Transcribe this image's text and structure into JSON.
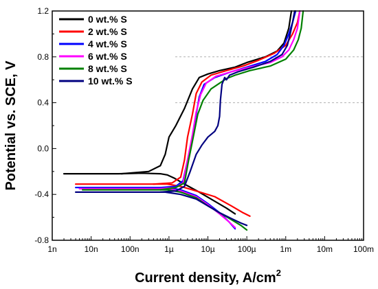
{
  "chart_data": {
    "type": "line",
    "xlabel": "Current density, A/cm",
    "xlabel_sup": "2",
    "ylabel": "Potential vs. SCE, V",
    "x_scale": "log",
    "xlim": [
      1e-09,
      0.1
    ],
    "ylim": [
      -0.8,
      1.2
    ],
    "x_ticks": [
      1e-09,
      1e-08,
      1e-07,
      1e-06,
      1e-05,
      0.0001,
      0.001,
      0.01,
      0.1
    ],
    "x_tick_labels": [
      "1n",
      "10n",
      "100n",
      "1µ",
      "10µ",
      "100µ",
      "1m",
      "10m",
      "100m"
    ],
    "y_ticks": [
      -0.8,
      -0.4,
      0.0,
      0.4,
      0.8,
      1.2
    ],
    "y_tick_labels": [
      "-0.8",
      "-0.4",
      "0.0",
      "0.4",
      "0.8",
      "1.2"
    ],
    "grid": "horizontal dashed at 0.4 and 0.8 (right of legend)",
    "legend_position": "top-left",
    "series": [
      {
        "name": "0 wt.% S",
        "color": "#000000",
        "cathodic": [
          [
            2e-09,
            -0.22
          ],
          [
            1e-08,
            -0.22
          ],
          [
            5e-08,
            -0.22
          ],
          [
            2e-07,
            -0.215
          ],
          [
            6e-07,
            -0.22
          ],
          [
            9e-07,
            -0.23
          ],
          [
            1.4e-06,
            -0.26
          ],
          [
            2.5e-06,
            -0.31
          ],
          [
            6e-06,
            -0.38
          ],
          [
            1.5e-05,
            -0.46
          ],
          [
            3e-05,
            -0.52
          ],
          [
            5e-05,
            -0.57
          ]
        ],
        "anodic": [
          [
            6e-08,
            -0.22
          ],
          [
            3e-07,
            -0.2
          ],
          [
            6e-07,
            -0.15
          ],
          [
            8e-07,
            -0.05
          ],
          [
            1e-06,
            0.1
          ],
          [
            1.5e-06,
            0.2
          ],
          [
            2.5e-06,
            0.35
          ],
          [
            4e-06,
            0.52
          ],
          [
            6e-06,
            0.62
          ],
          [
            1e-05,
            0.65
          ],
          [
            2e-05,
            0.68
          ],
          [
            5e-05,
            0.71
          ],
          [
            0.0001,
            0.75
          ],
          [
            0.0003,
            0.8
          ],
          [
            0.0006,
            0.85
          ],
          [
            0.0009,
            0.92
          ],
          [
            0.0012,
            1.05
          ],
          [
            0.0014,
            1.2
          ]
        ]
      },
      {
        "name": "2 wt.% S",
        "color": "#ff0000",
        "cathodic": [
          [
            4e-09,
            -0.31
          ],
          [
            3e-08,
            -0.31
          ],
          [
            2e-07,
            -0.31
          ],
          [
            9e-07,
            -0.31
          ],
          [
            2e-06,
            -0.33
          ],
          [
            5e-06,
            -0.37
          ],
          [
            1.5e-05,
            -0.42
          ],
          [
            4e-05,
            -0.5
          ],
          [
            8e-05,
            -0.56
          ],
          [
            0.00012,
            -0.59
          ]
        ],
        "anodic": [
          [
            4e-07,
            -0.31
          ],
          [
            1.2e-06,
            -0.3
          ],
          [
            2e-06,
            -0.25
          ],
          [
            2.5e-06,
            -0.1
          ],
          [
            3e-06,
            0.1
          ],
          [
            4e-06,
            0.3
          ],
          [
            5e-06,
            0.48
          ],
          [
            7e-06,
            0.58
          ],
          [
            1.2e-05,
            0.64
          ],
          [
            3e-05,
            0.68
          ],
          [
            8e-05,
            0.72
          ],
          [
            0.0002,
            0.77
          ],
          [
            0.0005,
            0.83
          ],
          [
            0.001,
            0.9
          ],
          [
            0.0015,
            1.0
          ],
          [
            0.002,
            1.1
          ],
          [
            0.0023,
            1.2
          ]
        ]
      },
      {
        "name": "4 wt.% S",
        "color": "#0000ff",
        "cathodic": [
          [
            4e-09,
            -0.34
          ],
          [
            3e-08,
            -0.34
          ],
          [
            2e-07,
            -0.34
          ],
          [
            9e-07,
            -0.34
          ],
          [
            2e-06,
            -0.36
          ],
          [
            5e-06,
            -0.41
          ],
          [
            1e-05,
            -0.48
          ],
          [
            2e-05,
            -0.56
          ],
          [
            3.5e-05,
            -0.64
          ],
          [
            5e-05,
            -0.7
          ]
        ],
        "anodic": [
          [
            6e-07,
            -0.34
          ],
          [
            1.5e-06,
            -0.33
          ],
          [
            2.3e-06,
            -0.28
          ],
          [
            3e-06,
            -0.1
          ],
          [
            4e-06,
            0.1
          ],
          [
            5e-06,
            0.3
          ],
          [
            6e-06,
            0.45
          ],
          [
            8e-06,
            0.56
          ],
          [
            1.5e-05,
            0.62
          ],
          [
            4e-05,
            0.67
          ],
          [
            0.0001,
            0.71
          ],
          [
            0.0003,
            0.76
          ],
          [
            0.0006,
            0.82
          ],
          [
            0.0009,
            0.9
          ],
          [
            0.0012,
            1.0
          ],
          [
            0.0015,
            1.1
          ],
          [
            0.0018,
            1.2
          ]
        ]
      },
      {
        "name": "6 wt.% S",
        "color": "#ff00ff",
        "cathodic": [
          [
            5e-09,
            -0.35
          ],
          [
            3e-08,
            -0.35
          ],
          [
            2e-07,
            -0.35
          ],
          [
            9e-07,
            -0.35
          ],
          [
            2e-06,
            -0.37
          ],
          [
            5e-06,
            -0.42
          ],
          [
            1e-05,
            -0.49
          ],
          [
            2e-05,
            -0.57
          ],
          [
            3.5e-05,
            -0.64
          ],
          [
            5e-05,
            -0.69
          ]
        ],
        "anodic": [
          [
            6e-07,
            -0.35
          ],
          [
            1.5e-06,
            -0.34
          ],
          [
            2.3e-06,
            -0.3
          ],
          [
            3e-06,
            -0.1
          ],
          [
            4e-06,
            0.12
          ],
          [
            5e-06,
            0.32
          ],
          [
            6.5e-06,
            0.47
          ],
          [
            9e-06,
            0.57
          ],
          [
            1.6e-05,
            0.63
          ],
          [
            4e-05,
            0.67
          ],
          [
            0.00012,
            0.71
          ],
          [
            0.0004,
            0.75
          ],
          [
            0.0008,
            0.8
          ],
          [
            0.0012,
            0.86
          ],
          [
            0.0016,
            0.95
          ],
          [
            0.002,
            1.05
          ],
          [
            0.0023,
            1.2
          ]
        ]
      },
      {
        "name": "8 wt.% S",
        "color": "#008000",
        "cathodic": [
          [
            6e-09,
            -0.36
          ],
          [
            3e-08,
            -0.36
          ],
          [
            2e-07,
            -0.36
          ],
          [
            9e-07,
            -0.36
          ],
          [
            2e-06,
            -0.38
          ],
          [
            5e-06,
            -0.43
          ],
          [
            1e-05,
            -0.5
          ],
          [
            2e-05,
            -0.56
          ],
          [
            4e-05,
            -0.62
          ],
          [
            7e-05,
            -0.67
          ],
          [
            0.0001,
            -0.71
          ]
        ],
        "anodic": [
          [
            6e-07,
            -0.36
          ],
          [
            1.5e-06,
            -0.34
          ],
          [
            2.5e-06,
            -0.3
          ],
          [
            3.2e-06,
            -0.1
          ],
          [
            4.2e-06,
            0.1
          ],
          [
            5.5e-06,
            0.3
          ],
          [
            7.5e-06,
            0.42
          ],
          [
            1.2e-05,
            0.52
          ],
          [
            2e-05,
            0.57
          ],
          [
            3e-05,
            0.61
          ],
          [
            5e-05,
            0.64
          ],
          [
            0.00012,
            0.68
          ],
          [
            0.0004,
            0.72
          ],
          [
            0.001,
            0.78
          ],
          [
            0.0016,
            0.86
          ],
          [
            0.0021,
            0.95
          ],
          [
            0.0025,
            1.05
          ],
          [
            0.0028,
            1.2
          ]
        ]
      },
      {
        "name": "10 wt.% S",
        "color": "#000080",
        "cathodic": [
          [
            4e-09,
            -0.38
          ],
          [
            3e-08,
            -0.38
          ],
          [
            2e-07,
            -0.38
          ],
          [
            8e-07,
            -0.38
          ],
          [
            2e-06,
            -0.4
          ],
          [
            5e-06,
            -0.44
          ],
          [
            1e-05,
            -0.5
          ],
          [
            2e-05,
            -0.56
          ],
          [
            4e-05,
            -0.61
          ],
          [
            7e-05,
            -0.65
          ],
          [
            0.0001,
            -0.67
          ]
        ],
        "anodic": [
          [
            6e-07,
            -0.38
          ],
          [
            1.5e-06,
            -0.37
          ],
          [
            2.5e-06,
            -0.33
          ],
          [
            3.5e-06,
            -0.2
          ],
          [
            5e-06,
            -0.05
          ],
          [
            7e-06,
            0.03
          ],
          [
            1e-05,
            0.1
          ],
          [
            1.5e-05,
            0.15
          ],
          [
            1.8e-05,
            0.2
          ],
          [
            2e-05,
            0.28
          ],
          [
            2.1e-05,
            0.42
          ],
          [
            2.3e-05,
            0.56
          ],
          [
            2.7e-05,
            0.62
          ],
          [
            3e-05,
            0.6
          ],
          [
            3.6e-05,
            0.64
          ],
          [
            6e-05,
            0.67
          ],
          [
            0.00015,
            0.71
          ],
          [
            0.0004,
            0.76
          ],
          [
            0.0008,
            0.82
          ],
          [
            0.0011,
            0.9
          ],
          [
            0.0013,
            1.0
          ],
          [
            0.0015,
            1.1
          ],
          [
            0.0017,
            1.2
          ]
        ]
      }
    ]
  }
}
